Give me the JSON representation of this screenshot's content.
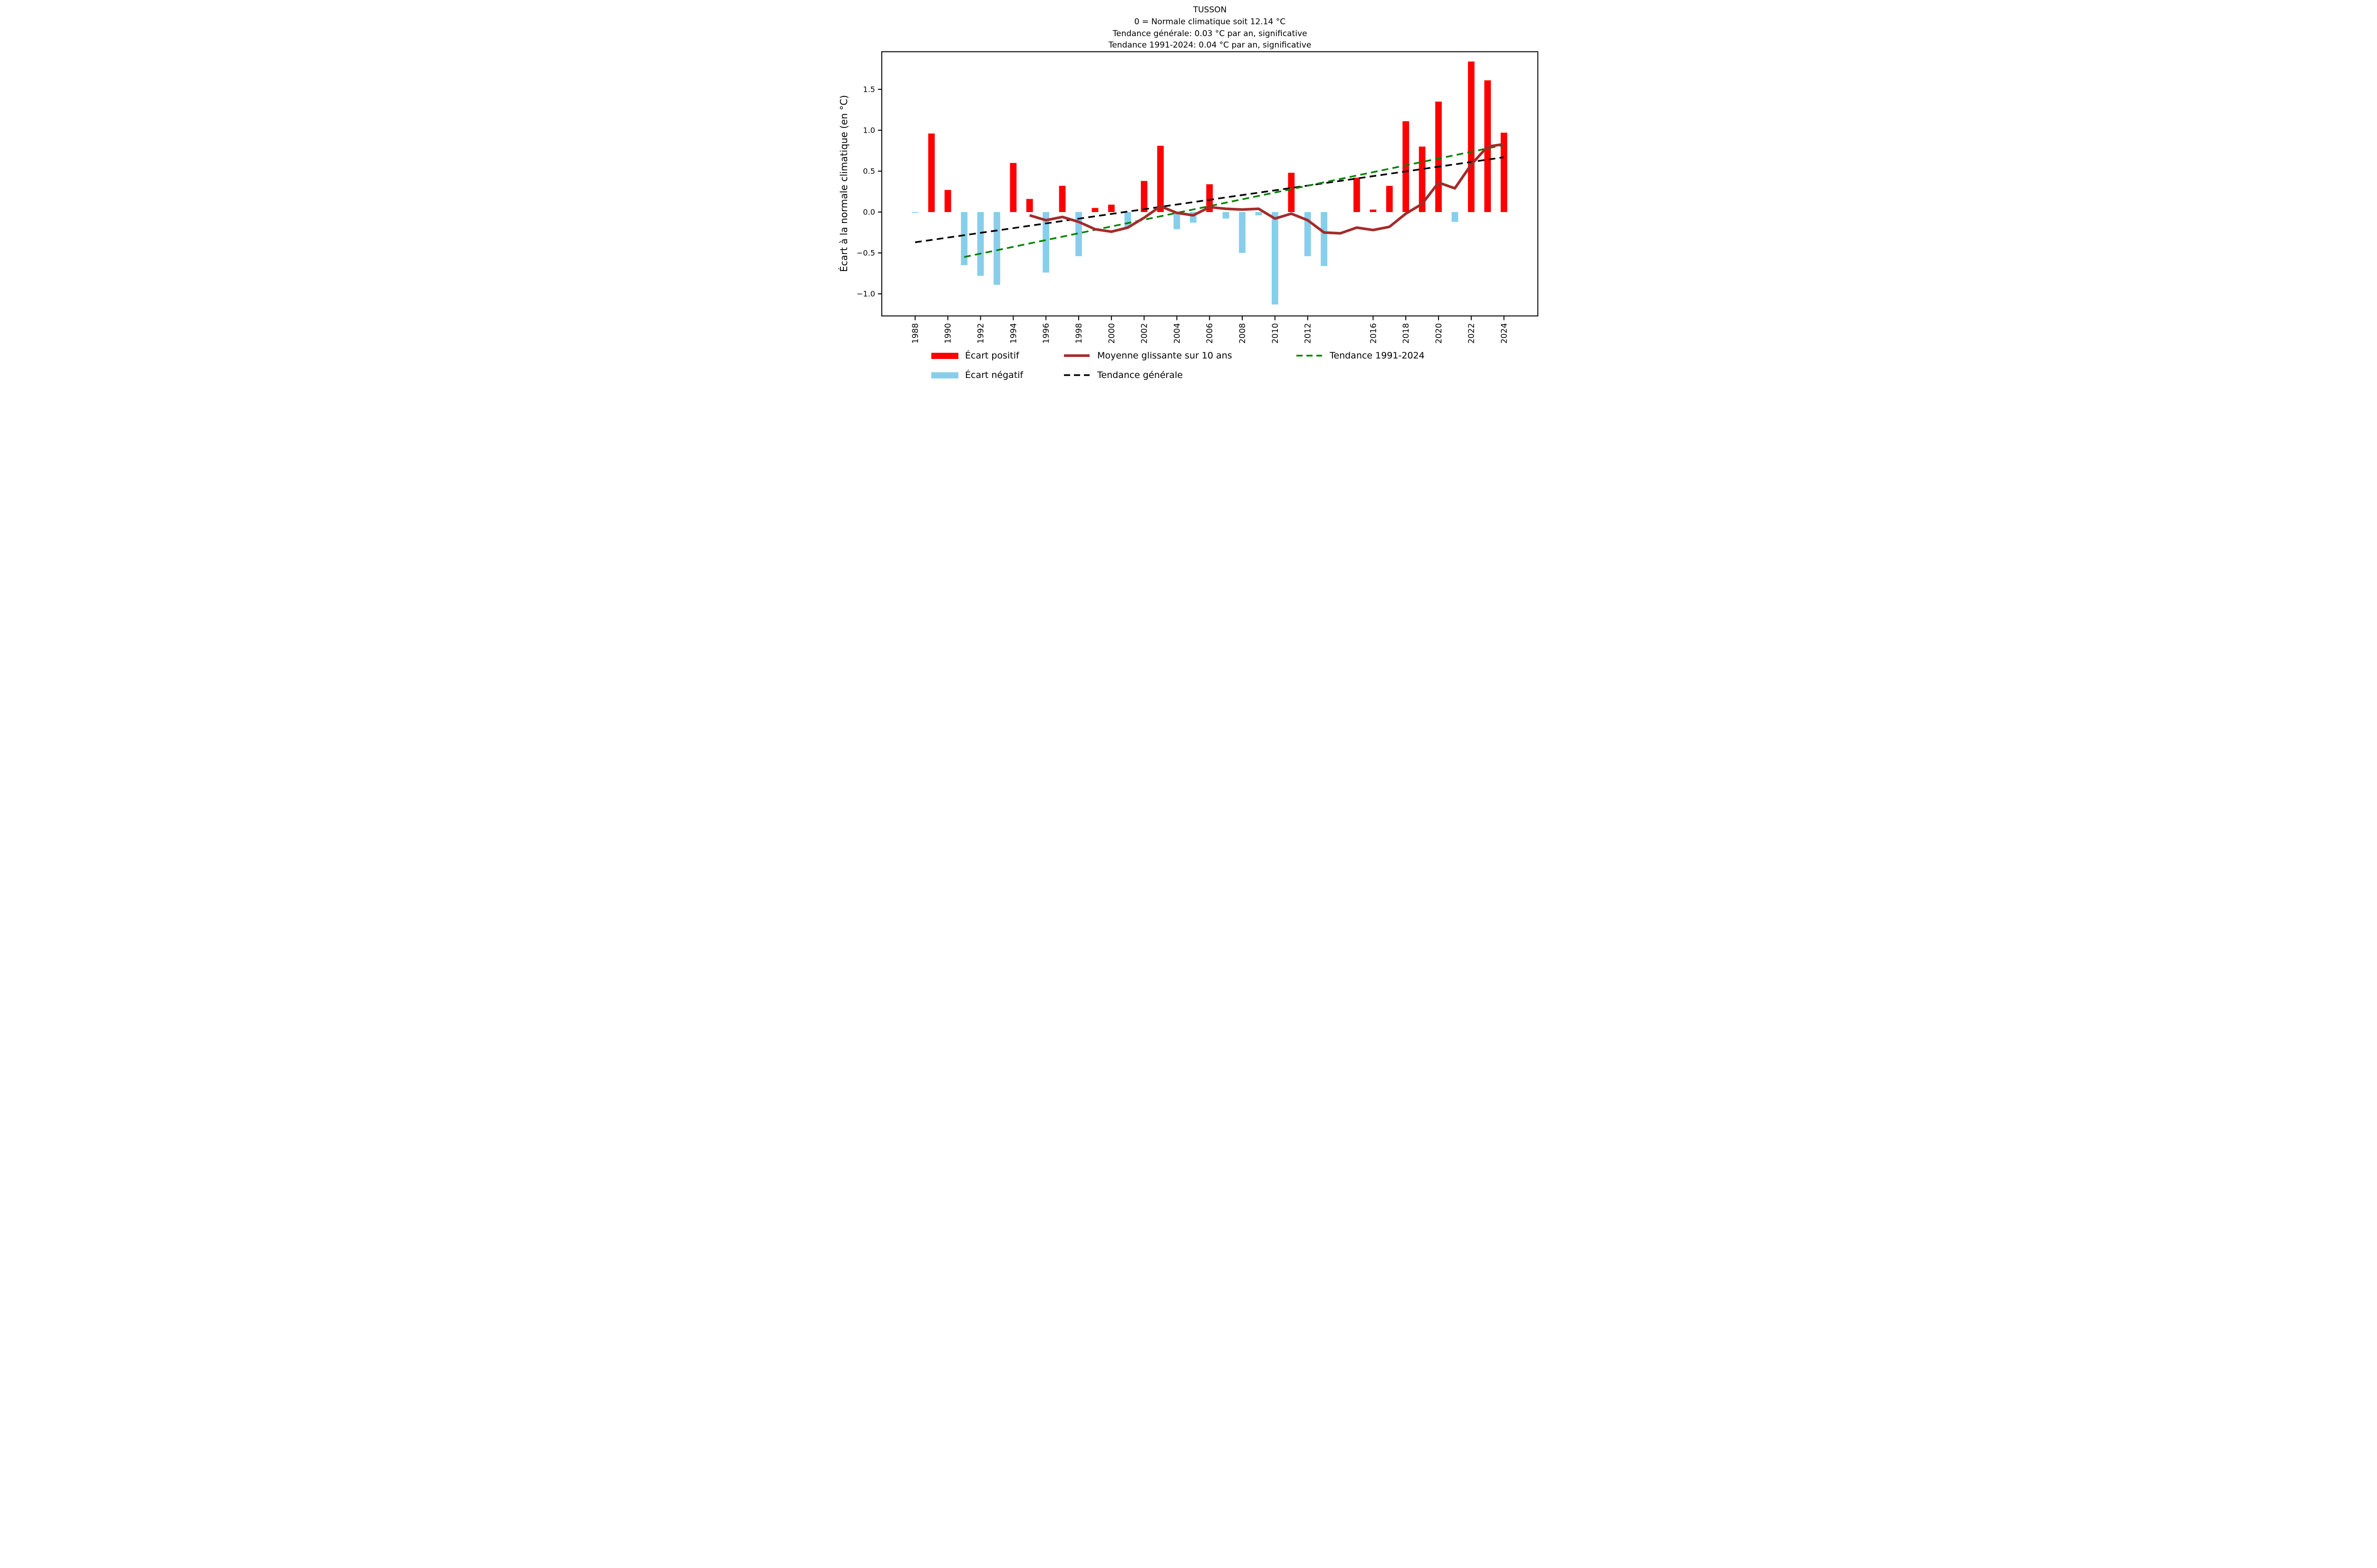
{
  "titles": {
    "line1": "TUSSON",
    "line2": "0 = Normale climatique soit 12.14 °C",
    "line3": "Tendance générale: 0.03 °C par an, significative",
    "line4": "Tendance 1991-2024: 0.04 °C par an, significative"
  },
  "legend": {
    "positive": "Écart positif",
    "negative": "Écart négatif",
    "moving_average": "Moyenne glissante sur 10 ans",
    "trend_general": "Tendance générale",
    "trend_recent": "Tendance 1991-2024"
  },
  "colors": {
    "positive": "#ff0000",
    "negative": "#87ceeb",
    "moving_average": "#a52a2a",
    "trend_general": "#000000",
    "trend_recent": "#008000",
    "axis": "#000000"
  },
  "chart_data": {
    "type": "bar",
    "title": "TUSSON",
    "ylabel": "Écart à la normale climatique (en °C)",
    "xlabel": "",
    "ylim": [
      -1.27,
      1.96
    ],
    "xlim": [
      1985.96,
      2026.07
    ],
    "grid": false,
    "y_ticks": [
      1.5,
      1.0,
      0.5,
      0.0,
      -0.5,
      -1.0
    ],
    "x_tick_years": [
      1988,
      1990,
      1992,
      1994,
      1996,
      1998,
      2000,
      2002,
      2004,
      2006,
      2008,
      2010,
      2012,
      2016,
      2018,
      2020,
      2022,
      2024
    ],
    "bars": {
      "years": [
        1988,
        1989,
        1990,
        1991,
        1992,
        1993,
        1994,
        1995,
        1996,
        1997,
        1998,
        1999,
        2000,
        2001,
        2002,
        2003,
        2004,
        2005,
        2006,
        2007,
        2008,
        2009,
        2010,
        2011,
        2012,
        2013,
        2014,
        2015,
        2016,
        2017,
        2018,
        2019,
        2020,
        2021,
        2022,
        2023,
        2024
      ],
      "values": [
        -0.01,
        0.96,
        0.27,
        -0.65,
        -0.78,
        -0.89,
        0.6,
        0.16,
        -0.74,
        0.32,
        -0.54,
        0.05,
        0.09,
        -0.19,
        0.38,
        0.81,
        -0.21,
        -0.13,
        0.34,
        -0.08,
        -0.5,
        -0.04,
        -1.13,
        0.48,
        -0.54,
        -0.66,
        null,
        0.42,
        0.03,
        0.32,
        1.11,
        0.8,
        1.35,
        -0.12,
        1.84,
        1.61,
        0.97
      ]
    },
    "moving_average": {
      "label": "Moyenne glissante sur 10 ans",
      "years": [
        1995,
        1996,
        1997,
        1998,
        1999,
        2000,
        2001,
        2002,
        2003,
        2004,
        2005,
        2006,
        2007,
        2008,
        2009,
        2010,
        2011,
        2012,
        2013,
        2014,
        2015,
        2016,
        2017,
        2018,
        2019,
        2020,
        2021,
        2022,
        2023,
        2024
      ],
      "values": [
        -0.04,
        -0.1,
        -0.06,
        -0.12,
        -0.21,
        -0.24,
        -0.19,
        -0.07,
        0.07,
        -0.01,
        -0.04,
        0.06,
        0.04,
        0.03,
        0.04,
        -0.08,
        -0.02,
        -0.1,
        -0.25,
        -0.26,
        -0.19,
        -0.22,
        -0.18,
        -0.02,
        0.1,
        0.36,
        0.29,
        0.58,
        0.8,
        0.83
      ]
    },
    "trend_general": {
      "label": "Tendance générale",
      "slope_c_per_year": 0.03,
      "x": [
        1988,
        2024
      ],
      "y": [
        -0.37,
        0.67
      ]
    },
    "trend_1991_2024": {
      "label": "Tendance 1991-2024",
      "slope_c_per_year": 0.04,
      "x": [
        1991,
        2024
      ],
      "y": [
        -0.55,
        0.82
      ]
    }
  }
}
